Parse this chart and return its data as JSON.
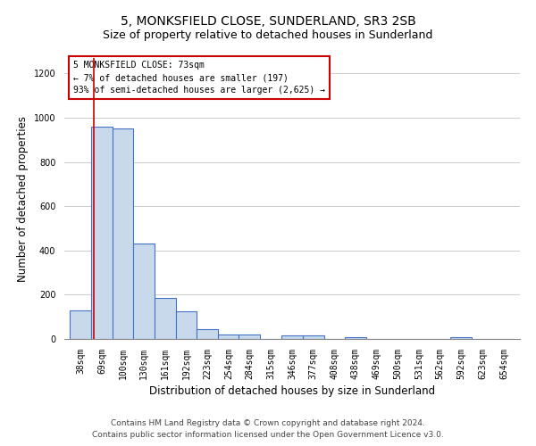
{
  "title1": "5, MONKSFIELD CLOSE, SUNDERLAND, SR3 2SB",
  "title2": "Size of property relative to detached houses in Sunderland",
  "xlabel": "Distribution of detached houses by size in Sunderland",
  "ylabel": "Number of detached properties",
  "footer1": "Contains HM Land Registry data © Crown copyright and database right 2024.",
  "footer2": "Contains public sector information licensed under the Open Government Licence v3.0.",
  "annotation_line1": "5 MONKSFIELD CLOSE: 73sqm",
  "annotation_line2": "← 7% of detached houses are smaller (197)",
  "annotation_line3": "93% of semi-detached houses are larger (2,625) →",
  "bar_left_edges": [
    38,
    69,
    100,
    130,
    161,
    192,
    223,
    254,
    284,
    315,
    346,
    377,
    408,
    438,
    469,
    500,
    531,
    562,
    592,
    623,
    654
  ],
  "bar_widths": [
    31,
    31,
    30,
    31,
    31,
    31,
    31,
    30,
    31,
    31,
    31,
    31,
    30,
    31,
    31,
    31,
    31,
    30,
    31,
    31,
    31
  ],
  "bar_heights": [
    130,
    960,
    950,
    430,
    185,
    125,
    45,
    20,
    20,
    0,
    15,
    15,
    0,
    10,
    0,
    0,
    0,
    0,
    10,
    0,
    0
  ],
  "bar_color": "#c9d9ec",
  "bar_edge_color": "#4472c4",
  "bar_edge_width": 0.8,
  "x_tick_labels": [
    "38sqm",
    "69sqm",
    "100sqm",
    "130sqm",
    "161sqm",
    "192sqm",
    "223sqm",
    "254sqm",
    "284sqm",
    "315sqm",
    "346sqm",
    "377sqm",
    "408sqm",
    "438sqm",
    "469sqm",
    "500sqm",
    "531sqm",
    "562sqm",
    "592sqm",
    "623sqm",
    "654sqm"
  ],
  "ylim": [
    0,
    1270
  ],
  "yticks": [
    0,
    200,
    400,
    600,
    800,
    1000,
    1200
  ],
  "property_line_x": 73,
  "property_line_color": "#cc0000",
  "annotation_box_color": "#cc0000",
  "grid_color": "#cccccc",
  "background_color": "#ffffff",
  "title1_fontsize": 10,
  "title2_fontsize": 9,
  "xlabel_fontsize": 8.5,
  "ylabel_fontsize": 8.5,
  "tick_fontsize": 7,
  "annotation_fontsize": 7,
  "footer_fontsize": 6.5
}
